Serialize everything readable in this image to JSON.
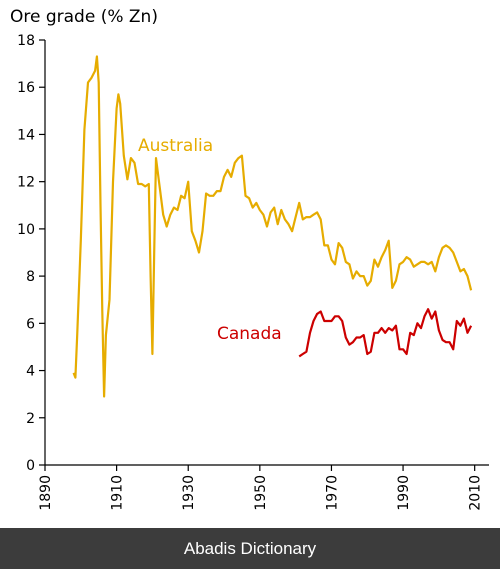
{
  "chart_data": {
    "type": "line",
    "title": "",
    "ylabel": "Ore grade (% Zn)",
    "xlabel": "",
    "xlim": [
      1890,
      2014
    ],
    "ylim": [
      0,
      18
    ],
    "x_ticks": [
      "1890",
      "1910",
      "1930",
      "1950",
      "1970",
      "1990",
      "2010"
    ],
    "y_ticks": [
      "0",
      "2",
      "4",
      "6",
      "8",
      "10",
      "12",
      "14",
      "16",
      "18"
    ],
    "grid": false,
    "series": [
      {
        "name": "Australia",
        "color": "#e6ac00",
        "points": [
          [
            1898,
            3.9
          ],
          [
            1898.5,
            3.7
          ],
          [
            1899,
            5.5
          ],
          [
            1900,
            9.5
          ],
          [
            1901,
            14.2
          ],
          [
            1902,
            16.2
          ],
          [
            1903,
            16.4
          ],
          [
            1904,
            16.7
          ],
          [
            1904.5,
            17.3
          ],
          [
            1905,
            16.2
          ],
          [
            1905.5,
            11
          ],
          [
            1906,
            6.5
          ],
          [
            1906.5,
            2.9
          ],
          [
            1907,
            5.5
          ],
          [
            1908,
            7
          ],
          [
            1909,
            12
          ],
          [
            1910,
            15.1
          ],
          [
            1910.5,
            15.7
          ],
          [
            1911,
            15.3
          ],
          [
            1912,
            13.1
          ],
          [
            1913,
            12.1
          ],
          [
            1914,
            13
          ],
          [
            1915,
            12.8
          ],
          [
            1916,
            11.9
          ],
          [
            1917,
            11.9
          ],
          [
            1918,
            11.8
          ],
          [
            1919,
            11.9
          ],
          [
            1919.5,
            8
          ],
          [
            1920,
            4.7
          ],
          [
            1920.5,
            9
          ],
          [
            1921,
            13
          ],
          [
            1922,
            11.8
          ],
          [
            1923,
            10.6
          ],
          [
            1924,
            10.1
          ],
          [
            1925,
            10.6
          ],
          [
            1926,
            10.9
          ],
          [
            1927,
            10.8
          ],
          [
            1928,
            11.4
          ],
          [
            1929,
            11.3
          ],
          [
            1930,
            12
          ],
          [
            1931,
            9.9
          ],
          [
            1932,
            9.5
          ],
          [
            1933,
            9
          ],
          [
            1934,
            9.9
          ],
          [
            1935,
            11.5
          ],
          [
            1936,
            11.4
          ],
          [
            1937,
            11.4
          ],
          [
            1938,
            11.6
          ],
          [
            1939,
            11.6
          ],
          [
            1940,
            12.2
          ],
          [
            1941,
            12.5
          ],
          [
            1942,
            12.2
          ],
          [
            1943,
            12.8
          ],
          [
            1944,
            13
          ],
          [
            1945,
            13.1
          ],
          [
            1946,
            11.4
          ],
          [
            1947,
            11.3
          ],
          [
            1948,
            10.9
          ],
          [
            1949,
            11.1
          ],
          [
            1950,
            10.8
          ],
          [
            1951,
            10.6
          ],
          [
            1952,
            10.1
          ],
          [
            1953,
            10.7
          ],
          [
            1954,
            10.9
          ],
          [
            1955,
            10.2
          ],
          [
            1956,
            10.8
          ],
          [
            1957,
            10.4
          ],
          [
            1958,
            10.2
          ],
          [
            1959,
            9.9
          ],
          [
            1960,
            10.5
          ],
          [
            1961,
            11.1
          ],
          [
            1962,
            10.4
          ],
          [
            1963,
            10.5
          ],
          [
            1964,
            10.5
          ],
          [
            1965,
            10.6
          ],
          [
            1966,
            10.7
          ],
          [
            1967,
            10.4
          ],
          [
            1968,
            9.3
          ],
          [
            1969,
            9.3
          ],
          [
            1970,
            8.7
          ],
          [
            1971,
            8.5
          ],
          [
            1972,
            9.4
          ],
          [
            1973,
            9.2
          ],
          [
            1974,
            8.6
          ],
          [
            1975,
            8.5
          ],
          [
            1976,
            7.9
          ],
          [
            1977,
            8.2
          ],
          [
            1978,
            8
          ],
          [
            1979,
            8
          ],
          [
            1980,
            7.6
          ],
          [
            1981,
            7.8
          ],
          [
            1982,
            8.7
          ],
          [
            1983,
            8.4
          ],
          [
            1984,
            8.8
          ],
          [
            1985,
            9.1
          ],
          [
            1986,
            9.5
          ],
          [
            1987,
            7.5
          ],
          [
            1988,
            7.8
          ],
          [
            1989,
            8.5
          ],
          [
            1990,
            8.6
          ],
          [
            1991,
            8.8
          ],
          [
            1992,
            8.7
          ],
          [
            1993,
            8.4
          ],
          [
            1994,
            8.5
          ],
          [
            1995,
            8.6
          ],
          [
            1996,
            8.6
          ],
          [
            1997,
            8.5
          ],
          [
            1998,
            8.6
          ],
          [
            1999,
            8.2
          ],
          [
            2000,
            8.8
          ],
          [
            2001,
            9.2
          ],
          [
            2002,
            9.3
          ],
          [
            2003,
            9.2
          ],
          [
            2004,
            9
          ],
          [
            2005,
            8.6
          ],
          [
            2006,
            8.2
          ],
          [
            2007,
            8.3
          ],
          [
            2008,
            8
          ],
          [
            2009,
            7.4
          ]
        ]
      },
      {
        "name": "Canada",
        "color": "#cc0000",
        "points": [
          [
            1961,
            4.6
          ],
          [
            1962,
            4.7
          ],
          [
            1963,
            4.8
          ],
          [
            1964,
            5.6
          ],
          [
            1965,
            6.1
          ],
          [
            1966,
            6.4
          ],
          [
            1967,
            6.5
          ],
          [
            1968,
            6.1
          ],
          [
            1969,
            6.1
          ],
          [
            1970,
            6.1
          ],
          [
            1971,
            6.3
          ],
          [
            1972,
            6.3
          ],
          [
            1973,
            6.1
          ],
          [
            1974,
            5.4
          ],
          [
            1975,
            5.1
          ],
          [
            1976,
            5.2
          ],
          [
            1977,
            5.4
          ],
          [
            1978,
            5.4
          ],
          [
            1979,
            5.5
          ],
          [
            1980,
            4.7
          ],
          [
            1981,
            4.8
          ],
          [
            1982,
            5.6
          ],
          [
            1983,
            5.6
          ],
          [
            1984,
            5.8
          ],
          [
            1985,
            5.6
          ],
          [
            1986,
            5.8
          ],
          [
            1987,
            5.7
          ],
          [
            1988,
            5.9
          ],
          [
            1989,
            4.9
          ],
          [
            1990,
            4.9
          ],
          [
            1991,
            4.7
          ],
          [
            1992,
            5.6
          ],
          [
            1993,
            5.5
          ],
          [
            1994,
            6
          ],
          [
            1995,
            5.8
          ],
          [
            1996,
            6.3
          ],
          [
            1997,
            6.6
          ],
          [
            1998,
            6.2
          ],
          [
            1999,
            6.5
          ],
          [
            2000,
            5.7
          ],
          [
            2001,
            5.3
          ],
          [
            2002,
            5.2
          ],
          [
            2003,
            5.2
          ],
          [
            2004,
            4.9
          ],
          [
            2005,
            6.1
          ],
          [
            2006,
            5.9
          ],
          [
            2007,
            6.2
          ],
          [
            2008,
            5.6
          ],
          [
            2009,
            5.9
          ]
        ]
      }
    ]
  },
  "footer": {
    "text": "Abadis Dictionary"
  }
}
